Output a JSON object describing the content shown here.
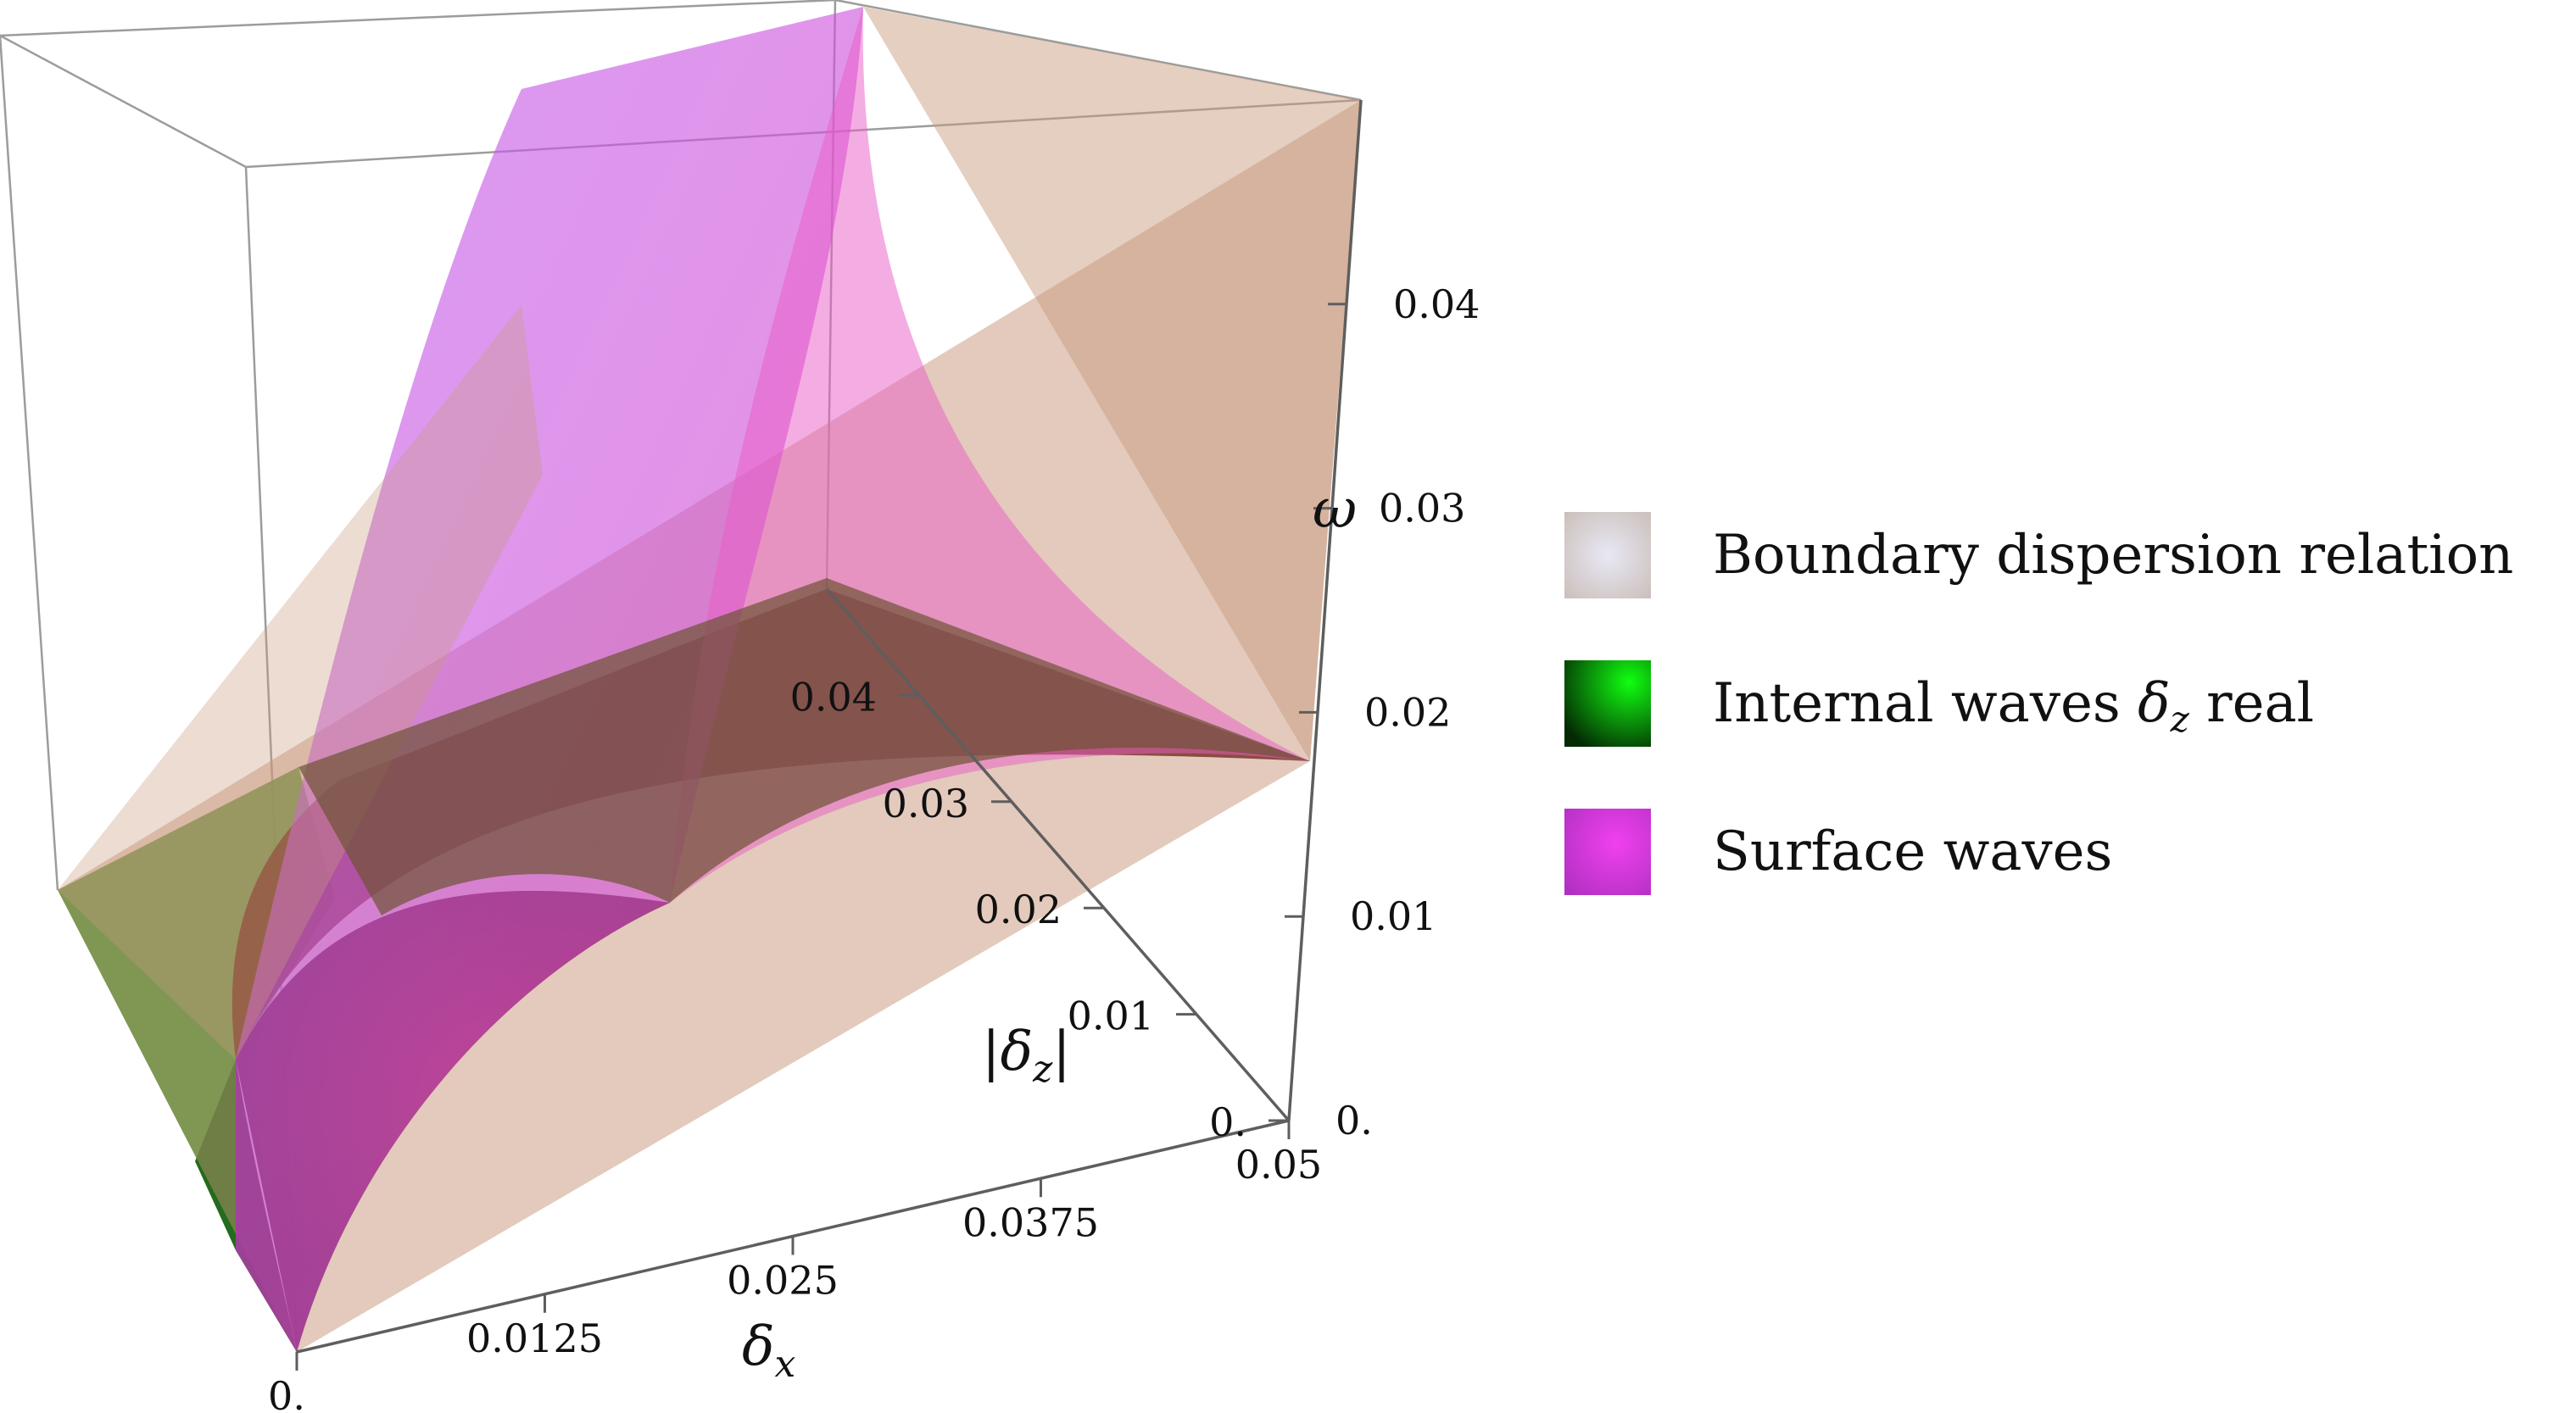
{
  "chart_data": {
    "type": "surface3d",
    "title": "",
    "axes": {
      "x": {
        "label": "δ",
        "label_sub": "x",
        "ticks": [
          "0.",
          "0.0125",
          "0.025",
          "0.0375",
          "0.05"
        ],
        "range": [
          0,
          0.05
        ]
      },
      "y": {
        "label": "|δ",
        "label_sub": "z",
        "label_end": "|",
        "ticks": [
          "0.",
          "0.01",
          "0.02",
          "0.03",
          "0.04"
        ],
        "range": [
          0,
          0.05
        ]
      },
      "z": {
        "label": "ω",
        "ticks": [
          "0.",
          "0.01",
          "0.02",
          "0.03",
          "0.04"
        ],
        "range": [
          0,
          0.05
        ]
      }
    },
    "series": [
      {
        "name": "Boundary dispersion relation",
        "color": "#c99a7e",
        "surface": "plane"
      },
      {
        "name": "Internal waves δz real",
        "name_parts": {
          "pre": "Internal waves ",
          "sym": "δ",
          "sub": "z",
          "post": " real"
        },
        "color": "#1a8a10",
        "surface": "curved"
      },
      {
        "name": "Surface waves",
        "color": "#e040e8",
        "surface": "curved"
      }
    ],
    "legend_position": "right",
    "box": true,
    "grid": false
  },
  "legend": {
    "items": [
      {
        "label": "Boundary dispersion relation"
      },
      {
        "pre": "Internal waves ",
        "sym": "δ",
        "sub": "z",
        "post": " real"
      },
      {
        "label": "Surface waves"
      }
    ]
  }
}
